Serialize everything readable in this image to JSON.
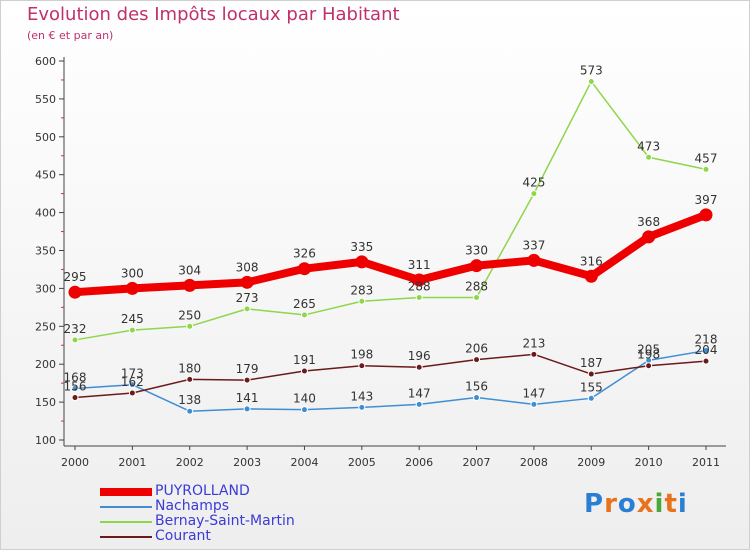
{
  "title": "Evolution des Impôts locaux par Habitant",
  "subtitle": "(en € et par an)",
  "logo": {
    "letters": [
      "P",
      "r",
      "o",
      "x",
      "i",
      "t",
      "i"
    ],
    "colors": [
      "#2a7fd4",
      "#e8731c",
      "#2a7fd4",
      "#e8731c",
      "#4aa83a",
      "#e8731c",
      "#2a7fd4"
    ]
  },
  "chart_data": {
    "type": "line",
    "title": "Evolution des Impôts locaux par Habitant",
    "subtitle": "(en € et par an)",
    "xlabel": "",
    "ylabel": "",
    "x": [
      "2000",
      "2001",
      "2002",
      "2003",
      "2004",
      "2005",
      "2006",
      "2007",
      "2008",
      "2009",
      "2010",
      "2011"
    ],
    "ylim": [
      100,
      600
    ],
    "yticks": [
      "100",
      "150",
      "200",
      "250",
      "300",
      "350",
      "400",
      "450",
      "500",
      "550",
      "600"
    ],
    "grid": false,
    "legend_position": "bottom-left",
    "series": [
      {
        "name": "PUYROLLAND",
        "color": "#ee0000",
        "thick": true,
        "values": [
          295,
          300,
          304,
          308,
          326,
          335,
          311,
          330,
          337,
          316,
          368,
          397
        ],
        "labels": [
          "295",
          "300",
          "304",
          "308",
          "326",
          "335",
          "311",
          "330",
          "337",
          "316",
          "368",
          "397"
        ]
      },
      {
        "name": "Nachamps",
        "color": "#3f8ed4",
        "thick": false,
        "values": [
          168,
          173,
          138,
          141,
          140,
          143,
          147,
          156,
          147,
          155,
          205,
          218
        ],
        "labels": [
          "168",
          "173",
          "138",
          "141",
          "140",
          "143",
          "147",
          "156",
          "147",
          "155",
          "205",
          "218"
        ]
      },
      {
        "name": "Bernay-Saint-Martin",
        "color": "#8ed64a",
        "thick": false,
        "values": [
          232,
          245,
          250,
          273,
          265,
          283,
          288,
          288,
          425,
          573,
          473,
          457
        ],
        "labels": [
          "232",
          "245",
          "250",
          "273",
          "265",
          "283",
          "288",
          "288",
          "425",
          "573",
          "473",
          "457"
        ]
      },
      {
        "name": "Courant",
        "color": "#6b1a1a",
        "thick": false,
        "values": [
          156,
          162,
          180,
          179,
          191,
          198,
          196,
          206,
          213,
          187,
          198,
          204
        ],
        "labels": [
          "156",
          "162",
          "180",
          "179",
          "191",
          "198",
          "196",
          "206",
          "213",
          "187",
          "198",
          "204"
        ]
      }
    ]
  }
}
